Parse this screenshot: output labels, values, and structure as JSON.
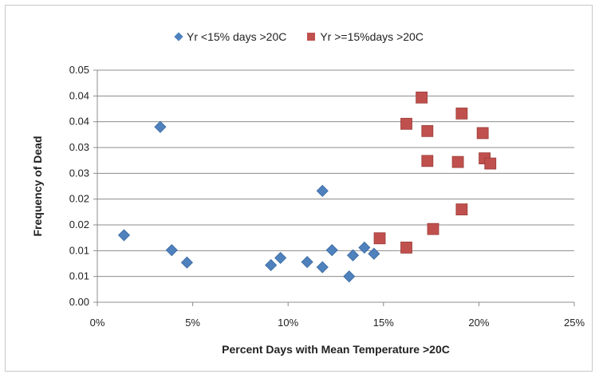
{
  "chart_data": {
    "type": "scatter",
    "title": "",
    "xlabel": "Percent Days with Mean Temperature >20C",
    "ylabel": "Frequency of Dead",
    "xlim": [
      0,
      25
    ],
    "ylim": [
      0,
      0.045
    ],
    "x_tick_labels": [
      "0%",
      "5%",
      "10%",
      "15%",
      "20%",
      "25%"
    ],
    "y_tick_labels": [
      "0.00",
      "0.01",
      "0.01",
      "0.02",
      "0.02",
      "0.03",
      "0.03",
      "0.04",
      "0.04",
      "0.05"
    ],
    "grid": "horizontal",
    "legend_position": "top",
    "series": [
      {
        "name": "Yr <15% days >20C",
        "marker": "diamond",
        "color": "#4f81bd",
        "points": [
          {
            "x": 1.4,
            "y": 0.013
          },
          {
            "x": 3.3,
            "y": 0.034
          },
          {
            "x": 3.9,
            "y": 0.0101
          },
          {
            "x": 4.7,
            "y": 0.0077
          },
          {
            "x": 9.1,
            "y": 0.0072
          },
          {
            "x": 9.6,
            "y": 0.0086
          },
          {
            "x": 11.0,
            "y": 0.0078
          },
          {
            "x": 11.8,
            "y": 0.0068
          },
          {
            "x": 11.8,
            "y": 0.0216
          },
          {
            "x": 12.3,
            "y": 0.0101
          },
          {
            "x": 13.2,
            "y": 0.005
          },
          {
            "x": 13.4,
            "y": 0.0091
          },
          {
            "x": 14.0,
            "y": 0.0106
          },
          {
            "x": 14.5,
            "y": 0.0094
          }
        ]
      },
      {
        "name": "Yr >=15%days >20C",
        "marker": "square",
        "color": "#c0504d",
        "points": [
          {
            "x": 14.8,
            "y": 0.0124
          },
          {
            "x": 16.2,
            "y": 0.0106
          },
          {
            "x": 16.2,
            "y": 0.0346
          },
          {
            "x": 17.0,
            "y": 0.0397
          },
          {
            "x": 17.3,
            "y": 0.0332
          },
          {
            "x": 17.3,
            "y": 0.0274
          },
          {
            "x": 17.6,
            "y": 0.0142
          },
          {
            "x": 18.9,
            "y": 0.0272
          },
          {
            "x": 19.1,
            "y": 0.0366
          },
          {
            "x": 19.1,
            "y": 0.018
          },
          {
            "x": 20.2,
            "y": 0.0328
          },
          {
            "x": 20.3,
            "y": 0.0279
          },
          {
            "x": 20.6,
            "y": 0.0269
          }
        ]
      }
    ]
  }
}
